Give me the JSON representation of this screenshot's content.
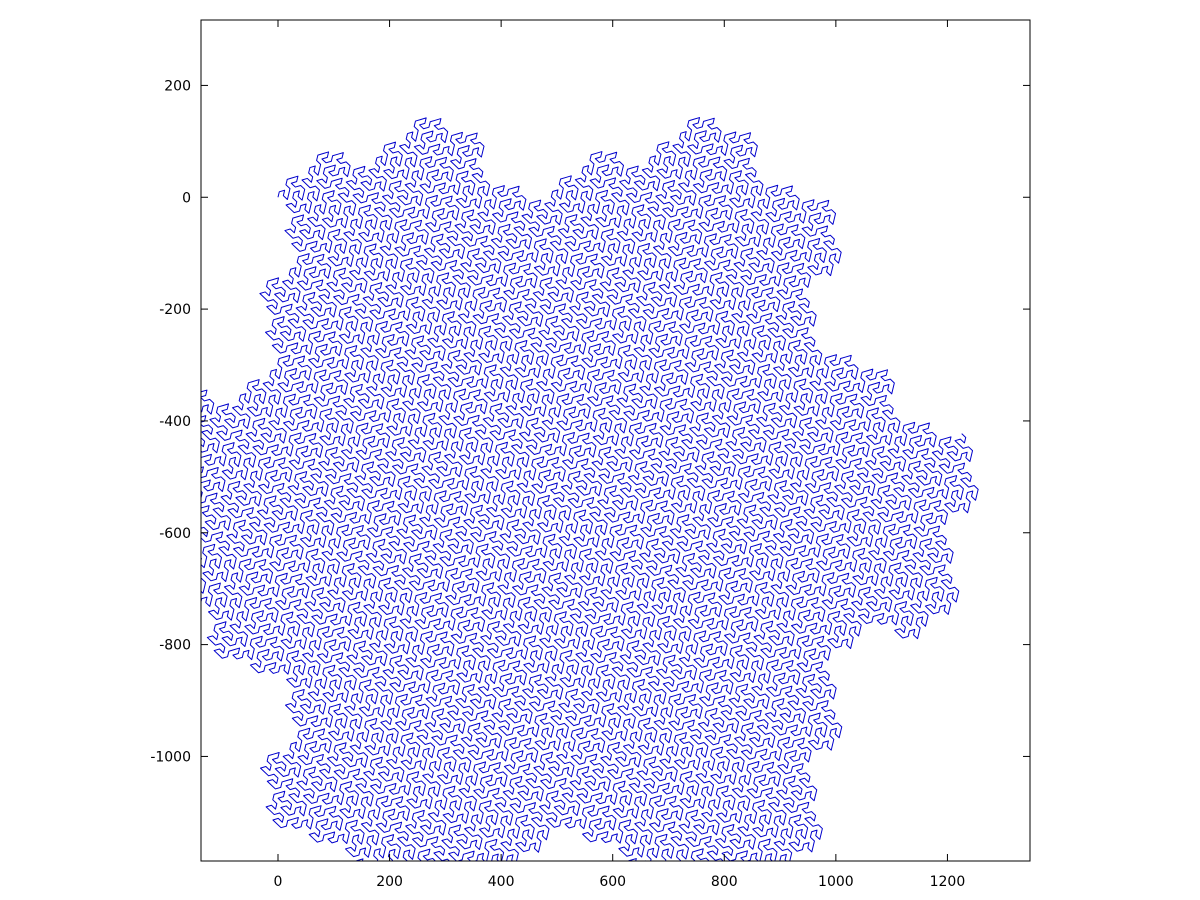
{
  "chart_data": {
    "type": "line",
    "title": "",
    "xlabel": "",
    "ylabel": "",
    "xlim": [
      -138,
      1348
    ],
    "ylim": [
      -1187,
      317
    ],
    "grid": false,
    "legend": "none",
    "x_ticks": [
      0,
      200,
      400,
      600,
      800,
      1000,
      1200
    ],
    "x_tick_labels": [
      "0",
      "200",
      "400",
      "600",
      "800",
      "1000",
      "1200"
    ],
    "y_ticks": [
      200,
      0,
      -200,
      -400,
      -600,
      -800,
      -1000
    ],
    "y_tick_labels": [
      "200",
      "0",
      "-200",
      "-400",
      "-600",
      "-800",
      "-1000"
    ],
    "series": [
      {
        "curve": "Gosper flowsnake (L-system: A -> A-B--B+A++AA+B-, B -> +A-BB--B-A++A+B, turn 60 deg)",
        "color": "#0000cc",
        "start": [
          0,
          0
        ]
      }
    ]
  }
}
